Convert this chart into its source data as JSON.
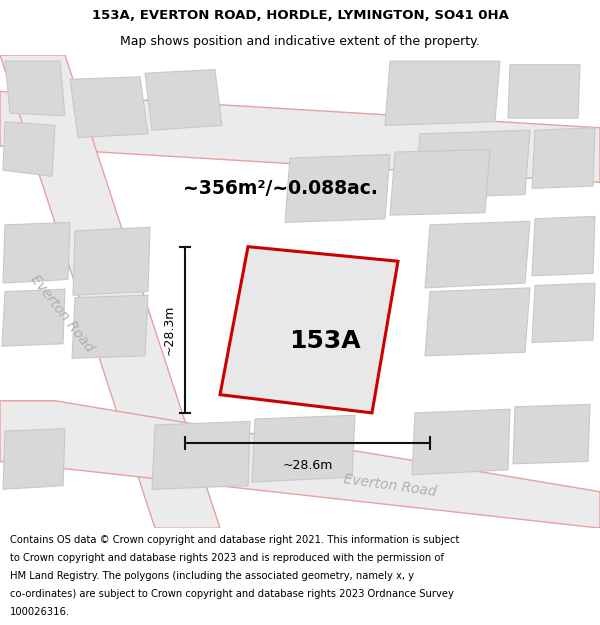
{
  "title_line1": "153A, EVERTON ROAD, HORDLE, LYMINGTON, SO41 0HA",
  "title_line2": "Map shows position and indicative extent of the property.",
  "area_label": "~356m²/~0.088ac.",
  "plot_label": "153A",
  "dim_width": "~28.6m",
  "dim_height": "~28.3m",
  "road_label_left": "Everton Road",
  "road_label_bottom": "Everton Road",
  "footer_lines": [
    "Contains OS data © Crown copyright and database right 2021. This information is subject",
    "to Crown copyright and database rights 2023 and is reproduced with the permission of",
    "HM Land Registry. The polygons (including the associated geometry, namely x, y",
    "co-ordinates) are subject to Crown copyright and database rights 2023 Ordnance Survey",
    "100026316."
  ],
  "map_bg": "#f2f2f2",
  "building_fc": "#d8d8d8",
  "building_ec": "#c8c8c8",
  "road_fc": "#ebebeb",
  "road_ec": "#e8a0a0",
  "plot_ec": "#cc0000",
  "plot_fc": "#e8e8e8",
  "dim_color": "#111111",
  "road_label_color": "#b0b0b0",
  "title_fs": 9.5,
  "subtitle_fs": 9.0,
  "area_fs": 13.5,
  "plot_label_fs": 18.0,
  "dim_fs": 9.0,
  "road_fs": 10.0,
  "footer_fs": 7.2
}
